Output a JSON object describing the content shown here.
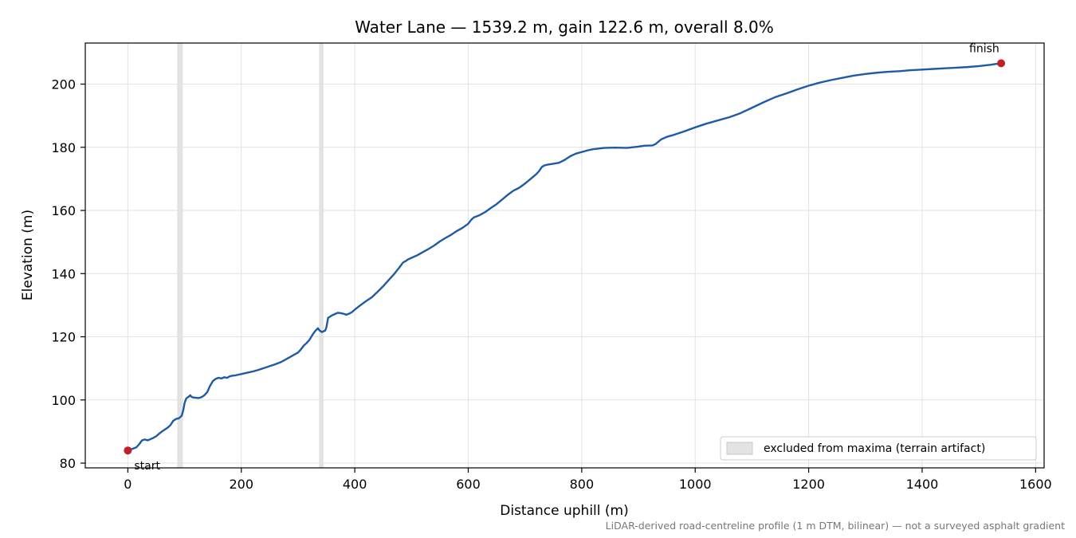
{
  "chart_data": {
    "type": "line",
    "title": "Water Lane — 1539.2 m, gain 122.6 m, overall 8.0%",
    "xlabel": "Distance uphill (m)",
    "ylabel": "Elevation (m)",
    "xlim": [
      -75,
      1615
    ],
    "ylim": [
      78.5,
      213
    ],
    "xticks": [
      0,
      200,
      400,
      600,
      800,
      1000,
      1200,
      1400,
      1600
    ],
    "yticks": [
      80,
      100,
      120,
      140,
      160,
      180,
      200
    ],
    "grid": true,
    "legend_position": "bottom-right",
    "legend_entries": [
      "excluded from maxima (terrain artifact)"
    ],
    "excluded_ranges": [
      [
        87,
        97
      ],
      [
        337,
        345
      ]
    ],
    "series": [
      {
        "color": "#1f5aa6",
        "points": [
          [
            0,
            84.0
          ],
          [
            5,
            84.3
          ],
          [
            15,
            85.0
          ],
          [
            20,
            86.0
          ],
          [
            25,
            87.2
          ],
          [
            30,
            87.5
          ],
          [
            35,
            87.2
          ],
          [
            40,
            87.6
          ],
          [
            45,
            88.0
          ],
          [
            50,
            88.5
          ],
          [
            55,
            89.3
          ],
          [
            60,
            90.0
          ],
          [
            65,
            90.6
          ],
          [
            70,
            91.2
          ],
          [
            75,
            92.0
          ],
          [
            80,
            93.4
          ],
          [
            85,
            94.0
          ],
          [
            90,
            94.2
          ],
          [
            95,
            95.0
          ],
          [
            98,
            97.0
          ],
          [
            100,
            99.0
          ],
          [
            103,
            100.5
          ],
          [
            107,
            101.0
          ],
          [
            110,
            101.5
          ],
          [
            112,
            101.0
          ],
          [
            115,
            100.8
          ],
          [
            120,
            100.7
          ],
          [
            125,
            100.6
          ],
          [
            130,
            100.9
          ],
          [
            135,
            101.5
          ],
          [
            140,
            102.5
          ],
          [
            145,
            104.5
          ],
          [
            150,
            106.0
          ],
          [
            155,
            106.7
          ],
          [
            160,
            107.0
          ],
          [
            165,
            106.8
          ],
          [
            170,
            107.2
          ],
          [
            175,
            107.0
          ],
          [
            180,
            107.5
          ],
          [
            185,
            107.7
          ],
          [
            190,
            107.8
          ],
          [
            200,
            108.2
          ],
          [
            210,
            108.6
          ],
          [
            220,
            109.0
          ],
          [
            230,
            109.5
          ],
          [
            240,
            110.1
          ],
          [
            250,
            110.7
          ],
          [
            260,
            111.3
          ],
          [
            270,
            112.0
          ],
          [
            280,
            113.0
          ],
          [
            290,
            114.0
          ],
          [
            300,
            115.0
          ],
          [
            305,
            116.0
          ],
          [
            310,
            117.2
          ],
          [
            315,
            118.0
          ],
          [
            320,
            119.0
          ],
          [
            325,
            120.5
          ],
          [
            330,
            121.8
          ],
          [
            335,
            122.7
          ],
          [
            338,
            122.0
          ],
          [
            342,
            121.5
          ],
          [
            348,
            122.0
          ],
          [
            350,
            123.0
          ],
          [
            353,
            126.0
          ],
          [
            360,
            126.8
          ],
          [
            365,
            127.2
          ],
          [
            370,
            127.6
          ],
          [
            375,
            127.5
          ],
          [
            380,
            127.3
          ],
          [
            385,
            127.0
          ],
          [
            390,
            127.3
          ],
          [
            395,
            127.8
          ],
          [
            400,
            128.6
          ],
          [
            410,
            130.0
          ],
          [
            420,
            131.3
          ],
          [
            430,
            132.5
          ],
          [
            440,
            134.2
          ],
          [
            450,
            136.0
          ],
          [
            460,
            138.0
          ],
          [
            470,
            140.0
          ],
          [
            478,
            141.8
          ],
          [
            485,
            143.5
          ],
          [
            490,
            144.0
          ],
          [
            495,
            144.6
          ],
          [
            500,
            145.0
          ],
          [
            510,
            145.8
          ],
          [
            520,
            146.8
          ],
          [
            530,
            147.8
          ],
          [
            540,
            148.9
          ],
          [
            550,
            150.2
          ],
          [
            560,
            151.3
          ],
          [
            570,
            152.3
          ],
          [
            580,
            153.5
          ],
          [
            590,
            154.5
          ],
          [
            600,
            155.8
          ],
          [
            605,
            157.0
          ],
          [
            610,
            157.8
          ],
          [
            620,
            158.5
          ],
          [
            630,
            159.5
          ],
          [
            640,
            160.8
          ],
          [
            650,
            162.0
          ],
          [
            660,
            163.5
          ],
          [
            670,
            165.0
          ],
          [
            680,
            166.3
          ],
          [
            690,
            167.2
          ],
          [
            700,
            168.5
          ],
          [
            710,
            170.0
          ],
          [
            720,
            171.5
          ],
          [
            725,
            172.5
          ],
          [
            730,
            173.8
          ],
          [
            735,
            174.3
          ],
          [
            740,
            174.5
          ],
          [
            750,
            174.8
          ],
          [
            760,
            175.1
          ],
          [
            770,
            176.0
          ],
          [
            780,
            177.2
          ],
          [
            790,
            178.0
          ],
          [
            800,
            178.5
          ],
          [
            810,
            179.0
          ],
          [
            820,
            179.4
          ],
          [
            840,
            179.8
          ],
          [
            860,
            179.9
          ],
          [
            880,
            179.8
          ],
          [
            900,
            180.2
          ],
          [
            910,
            180.5
          ],
          [
            925,
            180.6
          ],
          [
            930,
            181.0
          ],
          [
            940,
            182.5
          ],
          [
            950,
            183.3
          ],
          [
            960,
            183.8
          ],
          [
            980,
            185.0
          ],
          [
            1000,
            186.3
          ],
          [
            1020,
            187.5
          ],
          [
            1040,
            188.5
          ],
          [
            1060,
            189.5
          ],
          [
            1080,
            190.8
          ],
          [
            1100,
            192.5
          ],
          [
            1120,
            194.2
          ],
          [
            1140,
            195.8
          ],
          [
            1160,
            197.0
          ],
          [
            1180,
            198.3
          ],
          [
            1200,
            199.5
          ],
          [
            1220,
            200.5
          ],
          [
            1240,
            201.3
          ],
          [
            1260,
            202.0
          ],
          [
            1280,
            202.7
          ],
          [
            1300,
            203.2
          ],
          [
            1320,
            203.6
          ],
          [
            1340,
            203.9
          ],
          [
            1360,
            204.1
          ],
          [
            1380,
            204.4
          ],
          [
            1400,
            204.6
          ],
          [
            1420,
            204.8
          ],
          [
            1440,
            205.0
          ],
          [
            1460,
            205.2
          ],
          [
            1480,
            205.4
          ],
          [
            1500,
            205.7
          ],
          [
            1520,
            206.1
          ],
          [
            1539.2,
            206.6
          ]
        ]
      }
    ],
    "annotations": [
      {
        "text": "start",
        "x": 0,
        "y": 84.0
      },
      {
        "text": "finish",
        "x": 1539.2,
        "y": 206.6
      }
    ],
    "marker_color": "#c0202a",
    "footnote": "LiDAR-derived road-centreline profile (1 m DTM, bilinear) — not a surveyed asphalt gradient"
  }
}
